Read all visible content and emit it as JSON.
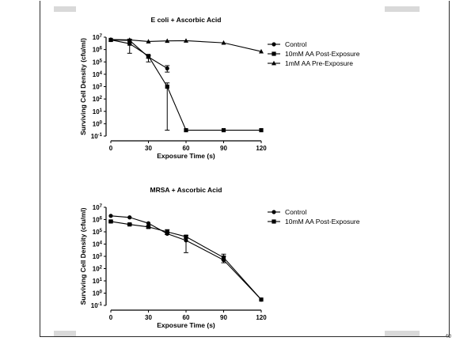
{
  "page_number": "40",
  "chart_data": [
    {
      "type": "line",
      "title": "E coli + Ascorbic Acid",
      "xlabel": "Exposure Time (s)",
      "ylabel": "Surviving Cell Density (cfu/ml)",
      "xlim": [
        0,
        120
      ],
      "ylim_log10": [
        -1,
        7
      ],
      "y_scale": "log",
      "x_ticks": [
        0,
        30,
        60,
        90,
        120
      ],
      "x_tick_labels": [
        "0",
        "30",
        "60",
        "90",
        "120"
      ],
      "y_tick_exponents": [
        7,
        6,
        5,
        4,
        3,
        2,
        1,
        0,
        -1
      ],
      "y_tick_bases": [
        "10",
        "10",
        "10",
        "10",
        "10",
        "10",
        "10",
        "10",
        "10"
      ],
      "y_tick_sups": [
        "7",
        "6",
        "5",
        "4",
        "3",
        "2",
        "1",
        "0",
        "-1"
      ],
      "legend_position": "right",
      "series": [
        {
          "name": "Control",
          "marker": "circle",
          "points": [
            [
              0,
              6000000.0
            ],
            [
              15,
              5500000.0
            ],
            [
              30,
              250000.0
            ],
            [
              45,
              30000.0
            ]
          ],
          "error_low": [
            6000000.0,
            5500000.0,
            200000.0,
            15000.0
          ],
          "error_high": [
            6000000.0,
            5500000.0,
            300000.0,
            50000.0
          ]
        },
        {
          "name": "10mM AA Post-Exposure",
          "marker": "square",
          "points": [
            [
              0,
              6000000.0
            ],
            [
              15,
              3000000.0
            ],
            [
              30,
              300000.0
            ],
            [
              45,
              1000.0
            ],
            [
              60,
              0.3
            ],
            [
              90,
              0.3
            ],
            [
              120,
              0.3
            ]
          ],
          "error_low": [
            5500000.0,
            500000.0,
            100000.0,
            0.3,
            0.3,
            0.3,
            0.3
          ],
          "error_high": [
            6500000.0,
            7000000.0,
            350000.0,
            2000.0,
            0.3,
            0.3,
            0.3
          ]
        },
        {
          "name": "1mM AA Pre-Exposure",
          "marker": "triangle",
          "points": [
            [
              0,
              6500000.0
            ],
            [
              15,
              6000000.0
            ],
            [
              30,
              4500000.0
            ],
            [
              45,
              5000000.0
            ],
            [
              60,
              5200000.0
            ],
            [
              90,
              3500000.0
            ],
            [
              120,
              700000.0
            ]
          ],
          "error_low": [
            6500000.0,
            6000000.0,
            4500000.0,
            5000000.0,
            5200000.0,
            3500000.0,
            700000.0
          ],
          "error_high": [
            6500000.0,
            6000000.0,
            4500000.0,
            5000000.0,
            5200000.0,
            3500000.0,
            700000.0
          ]
        }
      ]
    },
    {
      "type": "line",
      "title": "MRSA + Ascorbic Acid",
      "xlabel": "Exposure Time (s)",
      "ylabel": "Surviving Cell Density (cfu/ml)",
      "xlim": [
        0,
        120
      ],
      "ylim_log10": [
        -1,
        7
      ],
      "y_scale": "log",
      "x_ticks": [
        0,
        30,
        60,
        90,
        120
      ],
      "x_tick_labels": [
        "0",
        "30",
        "60",
        "90",
        "120"
      ],
      "y_tick_exponents": [
        7,
        6,
        5,
        4,
        3,
        2,
        1,
        0,
        -1
      ],
      "y_tick_bases": [
        "10",
        "10",
        "10",
        "10",
        "10",
        "10",
        "10",
        "10",
        "10"
      ],
      "y_tick_sups": [
        "7",
        "6",
        "5",
        "4",
        "3",
        "2",
        "1",
        "0",
        "-1"
      ],
      "legend_position": "right",
      "series": [
        {
          "name": "Control",
          "marker": "circle",
          "points": [
            [
              0,
              2000000.0
            ],
            [
              15,
              1500000.0
            ],
            [
              30,
              500000.0
            ],
            [
              45,
              70000.0
            ],
            [
              60,
              20000.0
            ],
            [
              90,
              500.0
            ],
            [
              120,
              0.3
            ]
          ],
          "error_low": [
            2000000.0,
            1500000.0,
            500000.0,
            60000.0,
            2000.0,
            300.0,
            0.3
          ],
          "error_high": [
            2000000.0,
            1500000.0,
            550000.0,
            80000.0,
            30000.0,
            1000.0,
            0.3
          ]
        },
        {
          "name": "10mM AA Post-Exposure",
          "marker": "square",
          "points": [
            [
              0,
              700000.0
            ],
            [
              15,
              400000.0
            ],
            [
              30,
              250000.0
            ],
            [
              45,
              100000.0
            ],
            [
              60,
              40000.0
            ],
            [
              90,
              800.0
            ],
            [
              120,
              0.3
            ]
          ],
          "error_low": [
            600000.0,
            350000.0,
            200000.0,
            60000.0,
            30000.0,
            500.0,
            0.3
          ],
          "error_high": [
            800000.0,
            450000.0,
            300000.0,
            150000.0,
            50000.0,
            1500.0,
            0.3
          ]
        }
      ]
    }
  ]
}
